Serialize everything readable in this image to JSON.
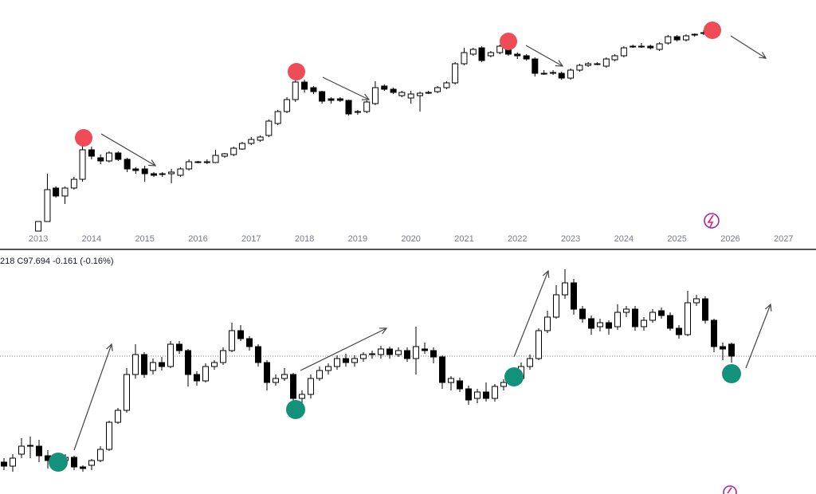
{
  "chart_data": [
    {
      "type": "candlestick",
      "x": [
        2013.0,
        2013.17,
        2013.33,
        2013.5,
        2013.67,
        2013.83,
        2014.0,
        2014.17,
        2014.33,
        2014.5,
        2014.67,
        2014.83,
        2015.0,
        2015.17,
        2015.33,
        2015.5,
        2015.67,
        2015.83,
        2016.0,
        2016.17,
        2016.33,
        2016.5,
        2016.67,
        2016.83,
        2017.0,
        2017.17,
        2017.33,
        2017.5,
        2017.67,
        2017.83,
        2018.0,
        2018.17,
        2018.33,
        2018.5,
        2018.67,
        2018.83,
        2019.0,
        2019.17,
        2019.33,
        2019.5,
        2019.67,
        2019.83,
        2020.0,
        2020.17,
        2020.33,
        2020.5,
        2020.67,
        2020.83,
        2021.0,
        2021.17,
        2021.33,
        2021.5,
        2021.67,
        2021.83,
        2022.0,
        2022.17,
        2022.33,
        2022.5,
        2022.67,
        2022.83,
        2023.0,
        2023.17,
        2023.33,
        2023.5,
        2023.67,
        2023.83,
        2024.0,
        2024.17,
        2024.33,
        2024.5,
        2024.67,
        2024.83,
        2025.0,
        2025.17,
        2025.33,
        2025.5,
        2025.67
      ],
      "open": [
        10,
        22,
        64,
        54,
        64,
        75,
        112,
        102,
        98,
        108,
        100,
        88,
        88,
        82,
        81,
        82,
        80,
        88,
        96,
        97,
        96,
        104,
        106,
        113,
        120,
        124,
        130,
        145,
        160,
        175,
        197,
        190,
        185,
        176,
        176,
        174,
        160,
        160,
        170,
        192,
        188,
        180,
        177,
        180,
        184,
        185,
        190,
        196,
        220,
        232,
        240,
        230,
        234,
        242,
        232,
        230,
        226,
        208,
        208,
        208,
        202,
        212,
        218,
        220,
        217,
        225,
        230,
        241,
        242,
        242,
        238,
        246,
        254,
        250,
        256,
        258,
        259
      ],
      "high": [
        22,
        82,
        66,
        66,
        78,
        130,
        116,
        106,
        110,
        110,
        102,
        90,
        92,
        84,
        84,
        88,
        90,
        100,
        98,
        100,
        112,
        108,
        116,
        122,
        128,
        130,
        150,
        162,
        178,
        215,
        200,
        192,
        186,
        178,
        178,
        175,
        162,
        174,
        198,
        194,
        190,
        186,
        186,
        185,
        186,
        192,
        198,
        222,
        240,
        240,
        242,
        236,
        244,
        246,
        234,
        232,
        228,
        212,
        212,
        210,
        214,
        220,
        222,
        222,
        228,
        232,
        242,
        244,
        246,
        244,
        247,
        256,
        256,
        257,
        258,
        262,
        262
      ],
      "low": [
        10,
        22,
        52,
        44,
        62,
        72,
        100,
        94,
        96,
        98,
        84,
        82,
        72,
        78,
        78,
        70,
        78,
        86,
        95,
        94,
        95,
        102,
        104,
        112,
        118,
        122,
        128,
        143,
        158,
        172,
        184,
        182,
        170,
        170,
        172,
        155,
        156,
        158,
        168,
        186,
        182,
        178,
        170,
        160,
        182,
        183,
        188,
        194,
        218,
        230,
        222,
        228,
        232,
        230,
        226,
        224,
        204,
        206,
        206,
        200,
        200,
        210,
        216,
        218,
        215,
        223,
        228,
        240,
        240,
        238,
        236,
        244,
        248,
        248,
        254,
        256,
        258
      ],
      "close": [
        22,
        62,
        54,
        64,
        75,
        112,
        104,
        98,
        108,
        100,
        88,
        86,
        82,
        80,
        82,
        84,
        88,
        97,
        97,
        97,
        105,
        107,
        114,
        120,
        125,
        128,
        148,
        160,
        175,
        197,
        188,
        185,
        173,
        174,
        174,
        157,
        159,
        172,
        190,
        188,
        184,
        184,
        182,
        183,
        184,
        190,
        196,
        220,
        234,
        238,
        224,
        234,
        242,
        232,
        230,
        226,
        208,
        208,
        209,
        202,
        212,
        218,
        220,
        220,
        226,
        230,
        240,
        242,
        242,
        240,
        245,
        254,
        250,
        255,
        257,
        259,
        260
      ],
      "xlim": [
        2012.28,
        2027.61
      ],
      "xticks": [
        2013,
        2014,
        2015,
        2016,
        2017,
        2018,
        2019,
        2020,
        2021,
        2022,
        2023,
        2024,
        2025,
        2026,
        2027
      ],
      "ylim": [
        0,
        300
      ],
      "up_color": "#ffffff",
      "down_color": "#000000"
    },
    {
      "type": "candlestick",
      "subtitle": "218 C97.694 -0.161 (-0.16%)",
      "open": [
        40,
        35,
        50,
        60,
        60,
        48,
        42,
        42,
        46,
        34,
        36,
        42,
        56,
        90,
        105,
        150,
        175,
        155,
        165,
        160,
        188,
        180,
        150,
        142,
        160,
        165,
        180,
        205,
        195,
        185,
        165,
        140,
        145,
        150,
        120,
        125,
        145,
        155,
        160,
        170,
        165,
        170,
        175,
        175,
        182,
        175,
        180,
        170,
        182,
        180,
        172,
        140,
        142,
        132,
        120,
        128,
        120,
        135,
        140,
        145,
        160,
        170,
        205,
        222,
        250,
        265,
        232,
        220,
        210,
        215,
        210,
        228,
        232,
        210,
        218,
        230,
        224,
        208,
        200,
        240,
        245,
        218,
        185,
        188
      ],
      "high": [
        45,
        50,
        70,
        72,
        68,
        55,
        46,
        50,
        48,
        36,
        44,
        60,
        92,
        108,
        158,
        188,
        178,
        170,
        172,
        192,
        192,
        182,
        154,
        164,
        168,
        184,
        215,
        212,
        198,
        188,
        168,
        150,
        158,
        152,
        130,
        150,
        160,
        164,
        174,
        176,
        174,
        178,
        180,
        186,
        185,
        184,
        184,
        210,
        190,
        184,
        174,
        148,
        146,
        136,
        132,
        140,
        138,
        144,
        150,
        165,
        175,
        208,
        230,
        262,
        282,
        270,
        236,
        224,
        220,
        218,
        238,
        236,
        236,
        222,
        232,
        234,
        228,
        212,
        255,
        250,
        248,
        220,
        190,
        190
      ],
      "low": [
        30,
        28,
        45,
        45,
        40,
        32,
        34,
        38,
        30,
        28,
        30,
        40,
        54,
        88,
        102,
        145,
        146,
        150,
        155,
        158,
        176,
        135,
        136,
        140,
        156,
        162,
        178,
        192,
        180,
        160,
        130,
        136,
        142,
        102,
        112,
        120,
        142,
        150,
        156,
        160,
        160,
        166,
        170,
        170,
        170,
        172,
        166,
        150,
        176,
        164,
        132,
        130,
        128,
        112,
        114,
        116,
        116,
        130,
        136,
        142,
        156,
        168,
        202,
        220,
        245,
        225,
        215,
        200,
        204,
        200,
        206,
        222,
        205,
        205,
        215,
        220,
        205,
        195,
        198,
        236,
        214,
        178,
        168,
        165
      ],
      "close": [
        35,
        45,
        60,
        61,
        48,
        42,
        40,
        46,
        34,
        32,
        42,
        56,
        90,
        105,
        150,
        175,
        150,
        165,
        160,
        188,
        180,
        150,
        142,
        160,
        165,
        180,
        205,
        195,
        185,
        165,
        140,
        145,
        150,
        120,
        125,
        145,
        155,
        160,
        170,
        165,
        170,
        175,
        176,
        182,
        175,
        180,
        170,
        185,
        180,
        172,
        140,
        145,
        132,
        118,
        128,
        120,
        135,
        140,
        145,
        160,
        170,
        205,
        222,
        250,
        265,
        232,
        220,
        208,
        215,
        208,
        228,
        232,
        210,
        218,
        228,
        224,
        208,
        200,
        240,
        245,
        218,
        185,
        182,
        173
      ],
      "ylim": [
        0,
        305
      ],
      "up_color": "#ffffff",
      "down_color": "#000000"
    }
  ]
}
